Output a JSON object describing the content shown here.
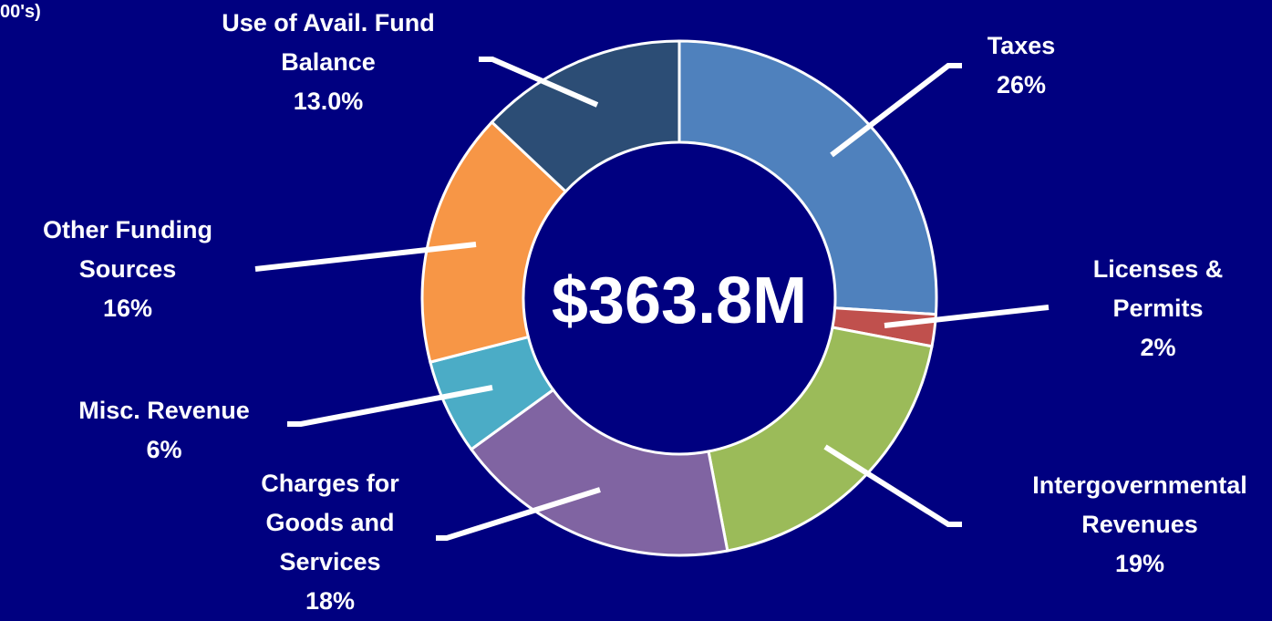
{
  "chart_data": {
    "type": "donut",
    "subtitle": "00's)",
    "center_label": "$363.8M",
    "categories": [
      "Taxes",
      "Licenses & Permits",
      "Intergovernmental Revenues",
      "Charges for Goods and Services",
      "Misc. Revenue",
      "Other Funding Sources",
      "Use of Avail. Fund Balance"
    ],
    "values": [
      26,
      2,
      19,
      18,
      6,
      16,
      13.0
    ],
    "value_labels": [
      "26%",
      "2%",
      "19%",
      "18%",
      "6%",
      "16%",
      "13.0%"
    ],
    "colors": [
      "#4f81bd",
      "#c0504d",
      "#9bbb59",
      "#8064a2",
      "#4bacc6",
      "#f79646",
      "#2c4d75"
    ]
  }
}
